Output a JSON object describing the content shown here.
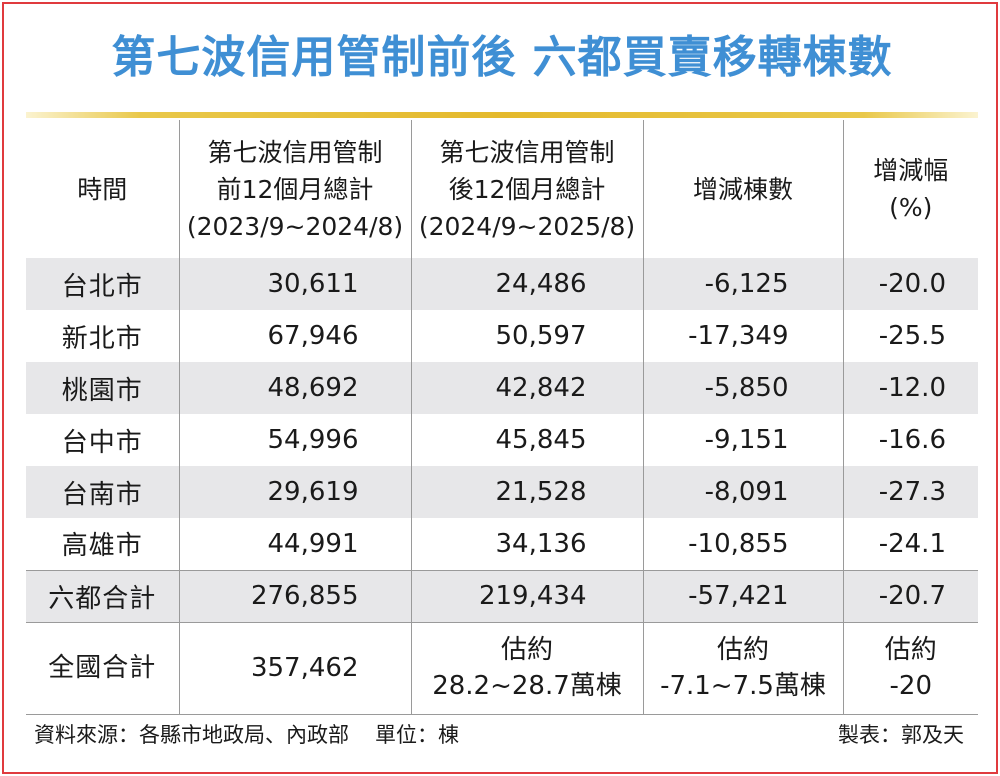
{
  "title": "第七波信用管制前後 六都買賣移轉棟數",
  "colors": {
    "title": "#3f8fd4",
    "border": "#e03a3e",
    "rule": "#e4b92c",
    "band": "#e7e7e9"
  },
  "chart_data": {
    "type": "table",
    "headers": [
      {
        "line1": "時間",
        "line2": "",
        "line3": ""
      },
      {
        "line1": "第七波信用管制",
        "line2": "前12個月總計",
        "line3": "(2023/9~2024/8)"
      },
      {
        "line1": "第七波信用管制",
        "line2": "後12個月總計",
        "line3": "(2024/9~2025/8)"
      },
      {
        "line1": "增減棟數",
        "line2": "",
        "line3": ""
      },
      {
        "line1": "增減幅",
        "line2": "(%)",
        "line3": ""
      }
    ],
    "rows": [
      [
        "台北市",
        "30,611",
        "24,486",
        "-6,125",
        "-20.0"
      ],
      [
        "新北市",
        "67,946",
        "50,597",
        "-17,349",
        "-25.5"
      ],
      [
        "桃園市",
        "48,692",
        "42,842",
        "-5,850",
        "-12.0"
      ],
      [
        "台中市",
        "54,996",
        "45,845",
        "-9,151",
        "-16.6"
      ],
      [
        "台南市",
        "29,619",
        "21,528",
        "-8,091",
        "-27.3"
      ],
      [
        "高雄市",
        "44,991",
        "34,136",
        "-10,855",
        "-24.1"
      ],
      [
        "六都合計",
        "276,855",
        "219,434",
        "-57,421",
        "-20.7"
      ]
    ],
    "nation": {
      "label": "全國合計",
      "before": "357,462",
      "after_l1": "估約",
      "after_l2": "28.2~28.7萬棟",
      "change_l1": "估約",
      "change_l2": "-7.1~7.5萬棟",
      "pct_l1": "估約",
      "pct_l2": "-20"
    }
  },
  "footer": {
    "source": "資料來源：各縣市地政局、內政部",
    "unit": "單位：棟",
    "credit": "製表：郭及天"
  }
}
